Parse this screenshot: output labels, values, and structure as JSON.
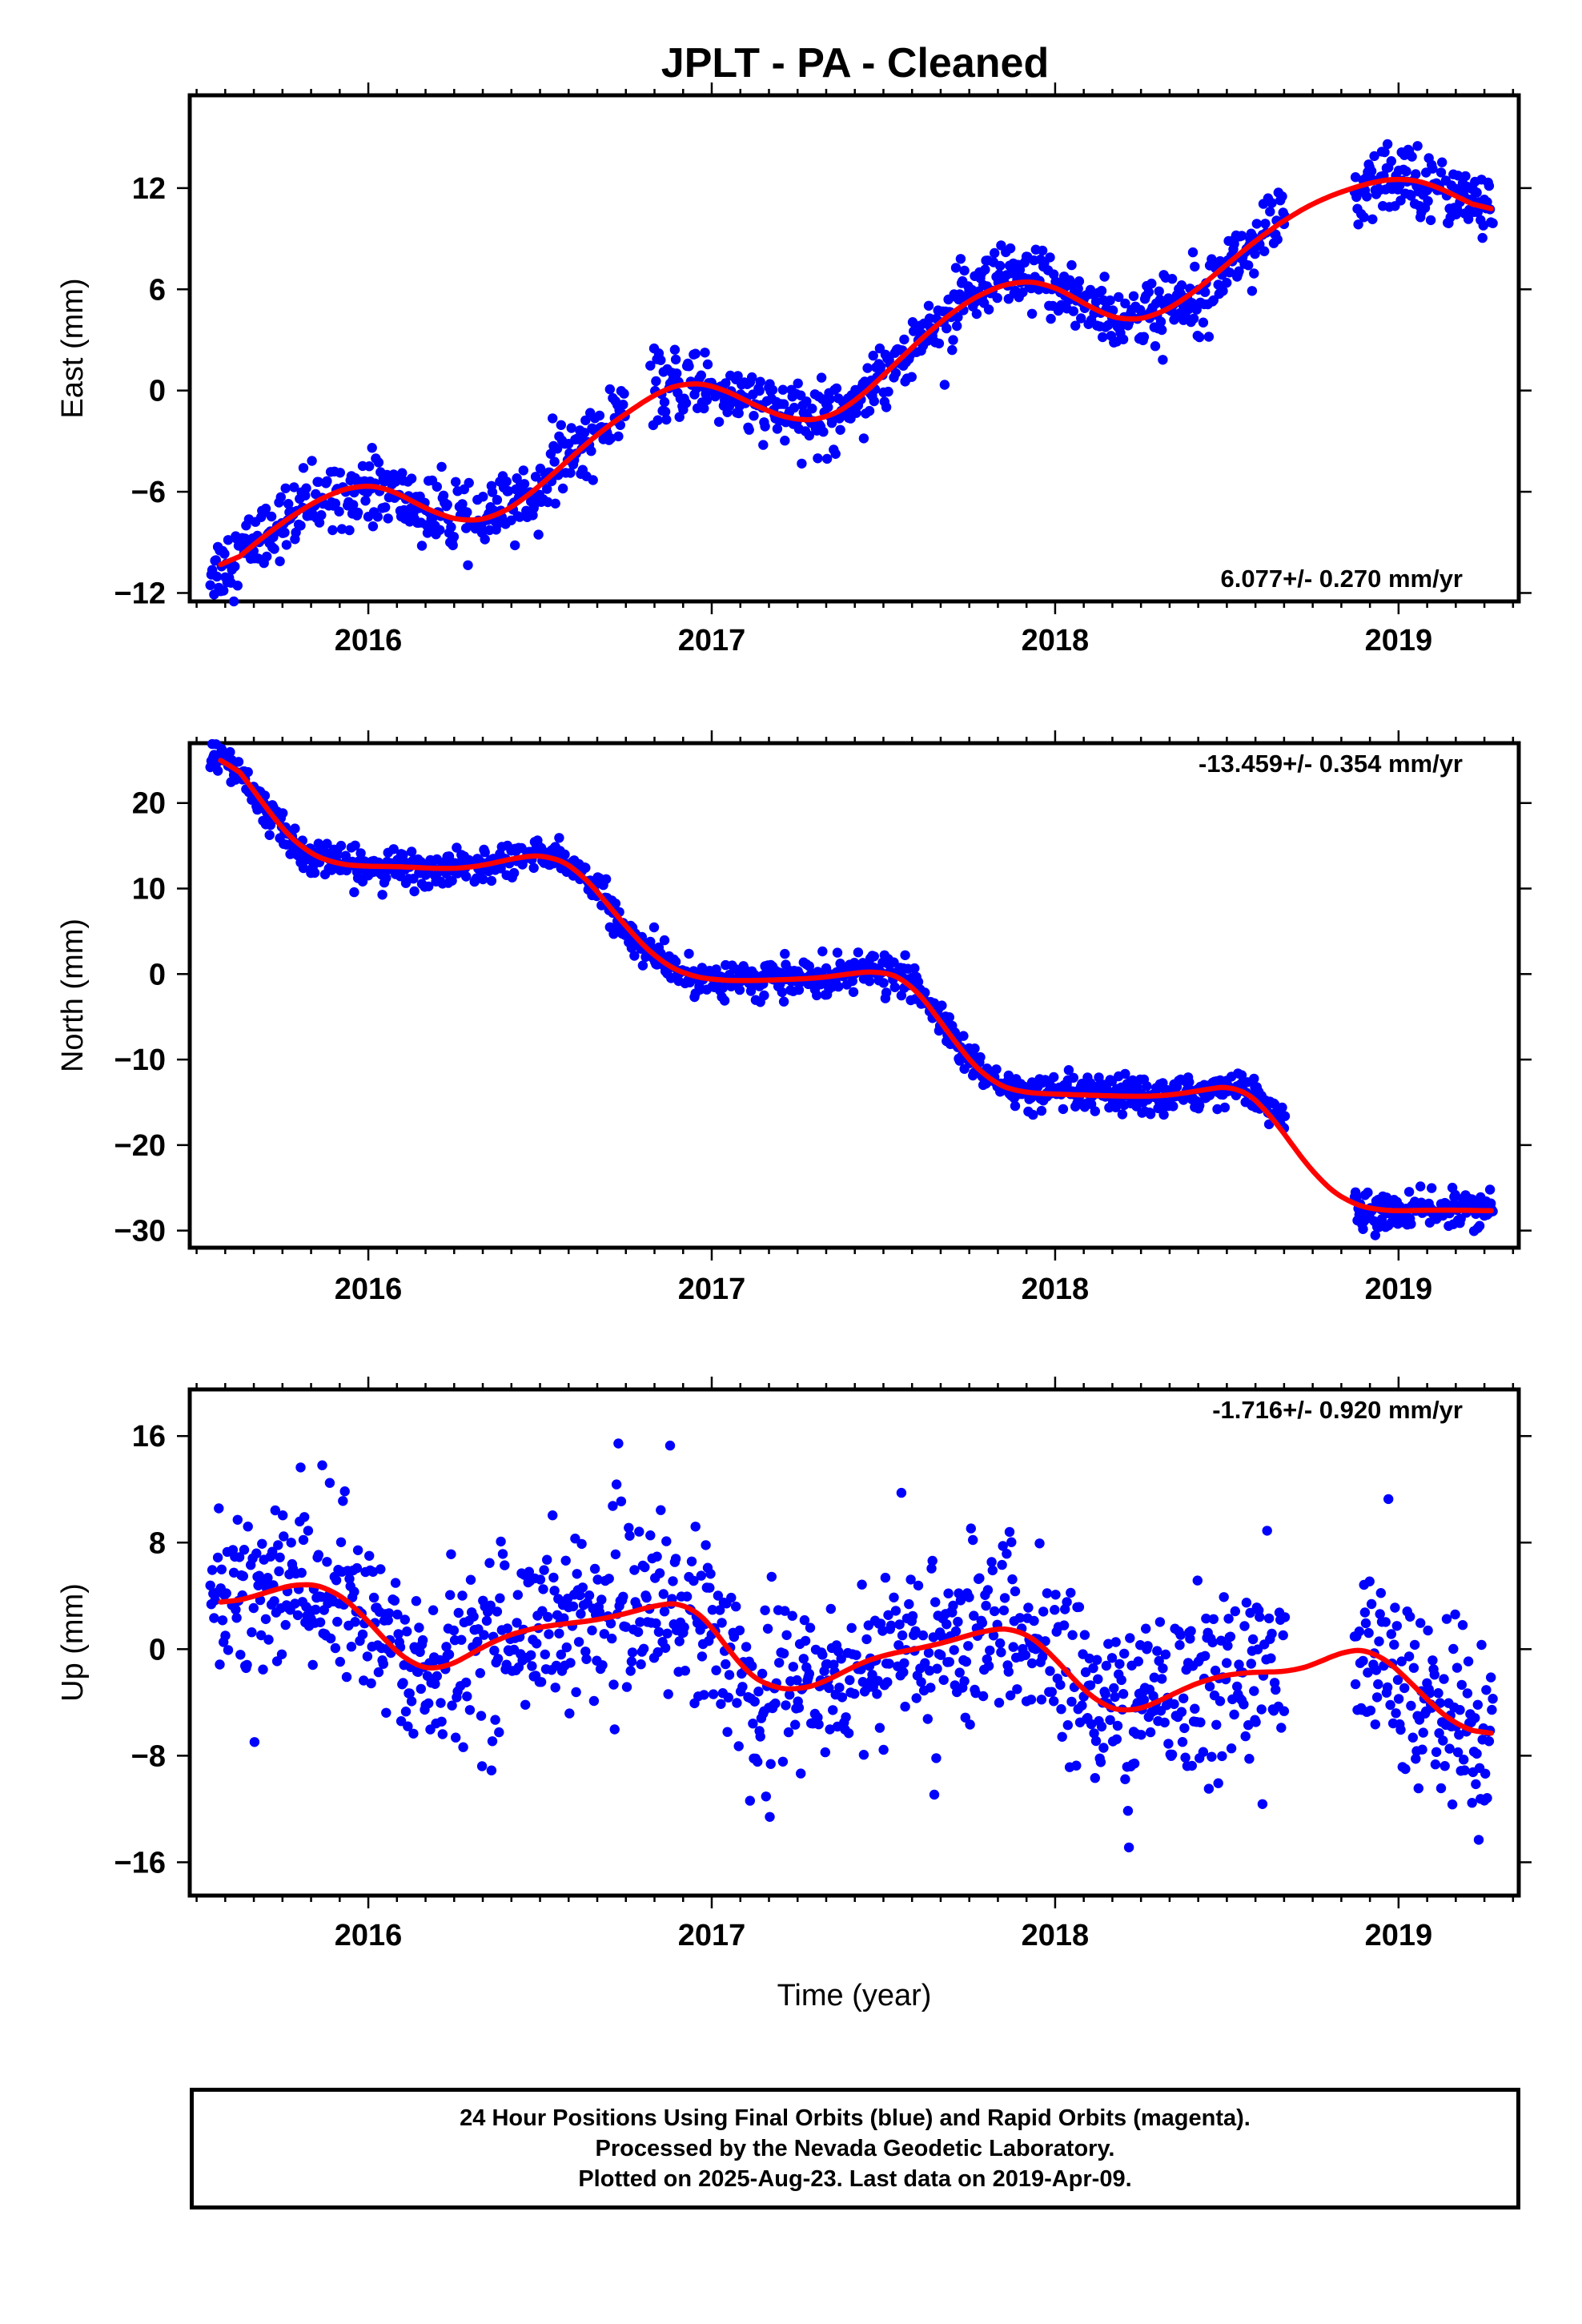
{
  "title": "JPLT  - PA - Cleaned",
  "colors": {
    "data": "#0000ff",
    "fit": "#ff0000",
    "axes": "#000000"
  },
  "chart_data": [
    {
      "type": "scatter",
      "component": "East",
      "ylabel": "East (mm)",
      "xlabel": "",
      "xlim": [
        2015.48,
        2019.35
      ],
      "ylim": [
        -12.5,
        17.5
      ],
      "yticks": [
        -12,
        -6,
        0,
        6,
        12
      ],
      "xticks": [
        2016,
        2017,
        2018,
        2019
      ],
      "xtick_labels": [
        "2016",
        "2017",
        "2018",
        "2019"
      ],
      "rate_label": "6.077+/- 0.270 mm/yr",
      "rate_position": "bottom-right",
      "grid": false,
      "series": [
        {
          "role": "observations",
          "x": [
            2015.57,
            2015.65,
            2015.73,
            2015.81,
            2015.89,
            2015.97,
            2016.05,
            2016.13,
            2016.21,
            2016.29,
            2016.37,
            2016.45,
            2016.53,
            2016.61,
            2016.69,
            2016.75,
            2016.85,
            2016.93,
            2017.01,
            2017.09,
            2017.17,
            2017.25,
            2017.33,
            2017.41,
            2017.49,
            2017.57,
            2017.65,
            2017.73,
            2017.81,
            2017.89,
            2017.97,
            2018.05,
            2018.13,
            2018.21,
            2018.29,
            2018.37,
            2018.45,
            2018.53,
            2018.61,
            2018.67,
            2018.89,
            2018.97,
            2019.05,
            2019.13,
            2019.21,
            2019.27
          ],
          "y": [
            -10.5,
            -9.2,
            -8.0,
            -7.1,
            -6.2,
            -5.7,
            -5.8,
            -6.8,
            -7.5,
            -7.8,
            -7.4,
            -6.5,
            -5.0,
            -3.4,
            -2.1,
            -1.0,
            0.0,
            0.4,
            0.3,
            -0.5,
            -1.2,
            -1.7,
            -1.6,
            -0.6,
            0.9,
            2.4,
            3.9,
            5.2,
            6.1,
            6.5,
            6.4,
            5.7,
            4.7,
            4.2,
            4.5,
            5.3,
            6.6,
            8.0,
            9.2,
            10.1,
            11.7,
            12.4,
            12.6,
            12.1,
            11.2,
            10.6
          ]
        },
        {
          "role": "fit",
          "x": [
            2015.57,
            2015.65,
            2015.73,
            2015.81,
            2015.89,
            2015.97,
            2016.05,
            2016.13,
            2016.21,
            2016.29,
            2016.37,
            2016.45,
            2016.53,
            2016.61,
            2016.69,
            2016.77,
            2016.85,
            2016.93,
            2017.01,
            2017.09,
            2017.17,
            2017.25,
            2017.33,
            2017.41,
            2017.49,
            2017.57,
            2017.65,
            2017.73,
            2017.81,
            2017.89,
            2017.97,
            2018.05,
            2018.13,
            2018.21,
            2018.29,
            2018.37,
            2018.45,
            2018.53,
            2018.61,
            2018.69,
            2018.77,
            2018.85,
            2018.93,
            2019.01,
            2019.09,
            2019.17,
            2019.27
          ],
          "y": [
            -10.8,
            -9.4,
            -8.1,
            -7.0,
            -6.1,
            -5.6,
            -5.7,
            -6.6,
            -7.4,
            -7.8,
            -7.5,
            -6.5,
            -5.1,
            -3.6,
            -2.2,
            -1.1,
            0.0,
            0.5,
            0.3,
            -0.5,
            -1.3,
            -1.8,
            -1.7,
            -0.8,
            0.7,
            2.3,
            3.8,
            5.1,
            6.0,
            6.5,
            6.4,
            5.6,
            4.6,
            4.1,
            4.4,
            5.3,
            6.6,
            8.0,
            9.3,
            10.4,
            11.3,
            11.9,
            12.4,
            12.6,
            12.3,
            11.5,
            10.5
          ]
        }
      ]
    },
    {
      "type": "scatter",
      "component": "North",
      "ylabel": "North (mm)",
      "xlabel": "",
      "xlim": [
        2015.48,
        2019.35
      ],
      "ylim": [
        -32,
        27
      ],
      "yticks": [
        -30,
        -20,
        -10,
        0,
        10,
        20
      ],
      "xticks": [
        2016,
        2017,
        2018,
        2019
      ],
      "xtick_labels": [
        "2016",
        "2017",
        "2018",
        "2019"
      ],
      "rate_label": "-13.459+/- 0.354 mm/yr",
      "rate_position": "top-right",
      "grid": false,
      "series": [
        {
          "role": "observations",
          "x": [
            2015.57,
            2015.65,
            2015.73,
            2015.81,
            2015.89,
            2015.97,
            2016.05,
            2016.13,
            2016.21,
            2016.29,
            2016.37,
            2016.45,
            2016.53,
            2016.61,
            2016.69,
            2016.75,
            2016.85,
            2016.93,
            2017.01,
            2017.09,
            2017.17,
            2017.25,
            2017.33,
            2017.41,
            2017.49,
            2017.57,
            2017.65,
            2017.73,
            2017.81,
            2017.89,
            2017.97,
            2018.05,
            2018.13,
            2018.21,
            2018.29,
            2018.37,
            2018.45,
            2018.53,
            2018.61,
            2018.89,
            2018.97,
            2019.05,
            2019.13,
            2019.21,
            2019.27
          ],
          "y": [
            25.5,
            22.0,
            17.5,
            14.3,
            13.0,
            12.5,
            12.4,
            12.3,
            12.2,
            12.4,
            13.0,
            13.8,
            14.0,
            12.5,
            8.5,
            5.0,
            1.5,
            -0.2,
            -0.6,
            -0.7,
            -0.6,
            -0.5,
            -0.3,
            0.2,
            0.5,
            -0.5,
            -4.5,
            -9.0,
            -12.5,
            -13.8,
            -14.0,
            -14.1,
            -14.2,
            -14.3,
            -14.4,
            -14.2,
            -13.6,
            -12.8,
            -15.0,
            -28.0,
            -27.8,
            -27.6,
            -27.5,
            -27.5,
            -27.6
          ]
        },
        {
          "role": "fit",
          "x": [
            2015.57,
            2015.65,
            2015.73,
            2015.81,
            2015.89,
            2015.97,
            2016.05,
            2016.13,
            2016.21,
            2016.29,
            2016.37,
            2016.45,
            2016.53,
            2016.61,
            2016.69,
            2016.77,
            2016.85,
            2016.93,
            2017.01,
            2017.09,
            2017.17,
            2017.25,
            2017.33,
            2017.41,
            2017.49,
            2017.57,
            2017.65,
            2017.73,
            2017.81,
            2017.89,
            2017.97,
            2018.05,
            2018.13,
            2018.21,
            2018.29,
            2018.37,
            2018.45,
            2018.53,
            2018.61,
            2018.69,
            2018.77,
            2018.85,
            2018.93,
            2019.01,
            2019.09,
            2019.17,
            2019.27
          ],
          "y": [
            26.3,
            22.5,
            17.8,
            14.5,
            13.0,
            12.6,
            12.6,
            12.5,
            12.3,
            12.4,
            13.0,
            13.8,
            13.9,
            12.3,
            8.5,
            4.6,
            1.4,
            -0.2,
            -0.7,
            -0.8,
            -0.7,
            -0.6,
            -0.4,
            0.1,
            0.4,
            -0.6,
            -4.6,
            -9.2,
            -12.6,
            -13.8,
            -14.0,
            -14.1,
            -14.2,
            -14.3,
            -14.3,
            -14.0,
            -13.4,
            -13.0,
            -15.5,
            -20.0,
            -24.2,
            -26.7,
            -27.6,
            -27.7,
            -27.6,
            -27.6,
            -27.7
          ]
        }
      ]
    },
    {
      "type": "scatter",
      "component": "Up",
      "ylabel": "Up (mm)",
      "xlabel": "Time (year)",
      "xlim": [
        2015.48,
        2019.35
      ],
      "ylim": [
        -18.5,
        19.5
      ],
      "yticks": [
        -16,
        -8,
        0,
        8,
        16
      ],
      "xticks": [
        2016,
        2017,
        2018,
        2019
      ],
      "xtick_labels": [
        "2016",
        "2017",
        "2018",
        "2019"
      ],
      "rate_label": "-1.716+/- 0.920 mm/yr",
      "rate_position": "top-right",
      "grid": false,
      "series": [
        {
          "role": "observations",
          "x": [
            2015.57,
            2015.65,
            2015.73,
            2015.81,
            2015.89,
            2015.97,
            2016.05,
            2016.13,
            2016.21,
            2016.29,
            2016.37,
            2016.45,
            2016.53,
            2016.61,
            2016.69,
            2016.75,
            2016.85,
            2016.93,
            2017.01,
            2017.09,
            2017.17,
            2017.25,
            2017.33,
            2017.41,
            2017.49,
            2017.57,
            2017.65,
            2017.73,
            2017.81,
            2017.89,
            2017.97,
            2018.05,
            2018.13,
            2018.21,
            2018.29,
            2018.37,
            2018.45,
            2018.53,
            2018.61,
            2018.67,
            2018.89,
            2018.97,
            2019.05,
            2019.13,
            2019.21,
            2019.27
          ],
          "y": [
            3.5,
            4.0,
            4.8,
            5.2,
            4.6,
            2.8,
            0.4,
            -1.4,
            -1.5,
            -0.2,
            1.0,
            1.6,
            2.0,
            2.2,
            2.5,
            3.0,
            3.6,
            3.4,
            1.0,
            -1.8,
            -2.8,
            -3.0,
            -2.4,
            -1.2,
            -0.4,
            0.0,
            0.3,
            1.0,
            1.6,
            1.5,
            0.0,
            -2.5,
            -4.4,
            -4.8,
            -4.0,
            -3.0,
            -2.2,
            -1.8,
            -1.6,
            -1.6,
            0.0,
            -1.2,
            -3.5,
            -5.5,
            -6.4,
            -6.6
          ]
        },
        {
          "role": "fit",
          "x": [
            2015.57,
            2015.65,
            2015.73,
            2015.81,
            2015.89,
            2015.97,
            2016.05,
            2016.13,
            2016.21,
            2016.29,
            2016.37,
            2016.45,
            2016.53,
            2016.61,
            2016.69,
            2016.77,
            2016.85,
            2016.93,
            2017.01,
            2017.09,
            2017.17,
            2017.25,
            2017.33,
            2017.41,
            2017.49,
            2017.57,
            2017.65,
            2017.73,
            2017.81,
            2017.89,
            2017.97,
            2018.05,
            2018.13,
            2018.21,
            2018.29,
            2018.37,
            2018.45,
            2018.53,
            2018.61,
            2018.69,
            2018.77,
            2018.85,
            2018.93,
            2019.01,
            2019.09,
            2019.17,
            2019.27
          ],
          "y": [
            3.4,
            3.8,
            4.5,
            5.0,
            4.6,
            3.0,
            0.6,
            -1.3,
            -1.6,
            -0.5,
            0.7,
            1.4,
            1.8,
            2.0,
            2.3,
            2.8,
            3.4,
            3.5,
            1.5,
            -1.6,
            -2.9,
            -3.1,
            -2.5,
            -1.3,
            -0.5,
            -0.1,
            0.3,
            0.9,
            1.5,
            1.6,
            0.2,
            -2.2,
            -4.2,
            -4.8,
            -4.1,
            -3.0,
            -2.2,
            -1.8,
            -1.7,
            -1.7,
            -1.0,
            0.0,
            -0.1,
            -1.8,
            -4.0,
            -5.8,
            -6.5
          ]
        }
      ]
    }
  ],
  "footer": {
    "line1": "24 Hour Positions Using Final Orbits (blue) and Rapid Orbits (magenta).",
    "line2": "Processed by the Nevada Geodetic Laboratory.",
    "line3": "Plotted on 2025-Aug-23. Last data on 2019-Apr-09."
  }
}
